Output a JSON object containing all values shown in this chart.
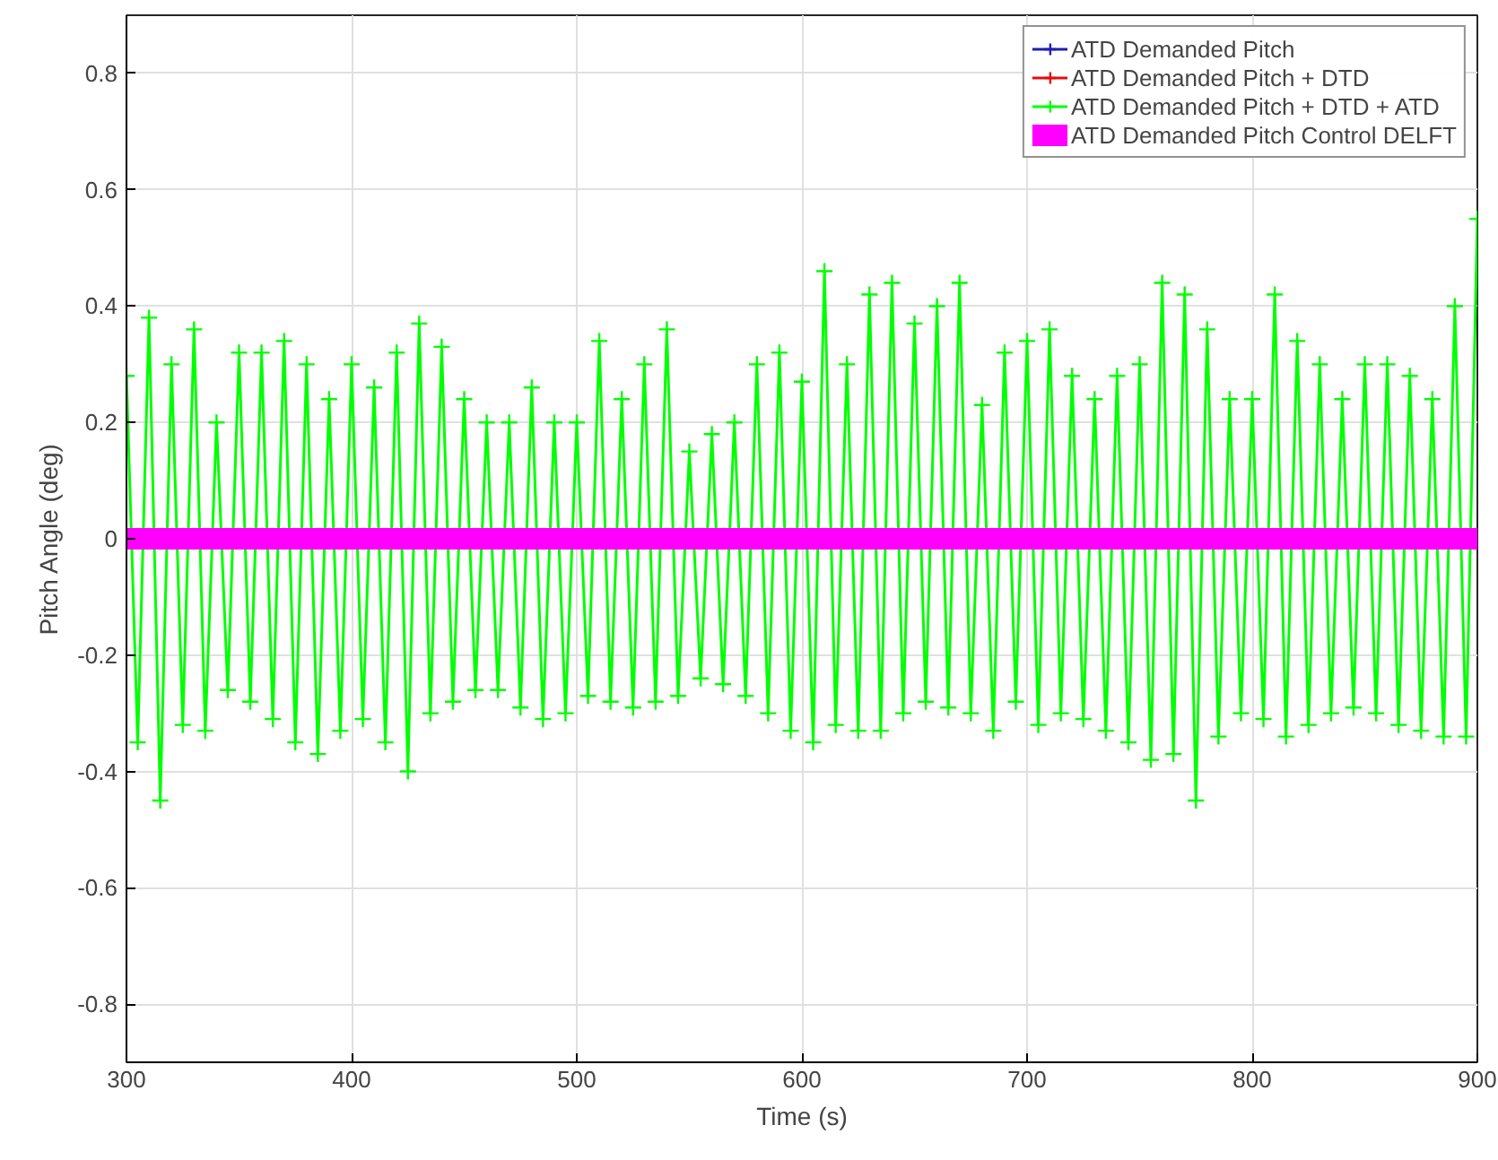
{
  "chart_data": {
    "type": "line",
    "xlabel": "Time (s)",
    "ylabel": "Pitch Angle (deg)",
    "xlim": [
      300,
      900
    ],
    "ylim": [
      -0.9,
      0.9
    ],
    "xticks": [
      300,
      400,
      500,
      600,
      700,
      800,
      900
    ],
    "yticks": [
      -0.8,
      -0.6,
      -0.4,
      -0.2,
      0,
      0.2,
      0.4,
      0.6,
      0.8
    ],
    "grid": true,
    "legend": "top right",
    "marker": "cross",
    "series": [
      {
        "name": "ATD Demanded Pitch",
        "color": "#1f1fb0"
      },
      {
        "name": "ATD Demanded Pitch + DTD",
        "color": "#e01010"
      },
      {
        "name": "ATD Demanded Pitch + DTD + ATD",
        "color": "#00ff00",
        "x": [
          300,
          305,
          310,
          315,
          320,
          325,
          330,
          335,
          340,
          345,
          350,
          355,
          360,
          365,
          370,
          375,
          380,
          385,
          390,
          395,
          400,
          405,
          410,
          415,
          420,
          425,
          430,
          435,
          440,
          445,
          450,
          455,
          460,
          465,
          470,
          475,
          480,
          485,
          490,
          495,
          500,
          505,
          510,
          515,
          520,
          525,
          530,
          535,
          540,
          545,
          550,
          555,
          560,
          565,
          570,
          575,
          580,
          585,
          590,
          595,
          600,
          605,
          610,
          615,
          620,
          625,
          630,
          635,
          640,
          645,
          650,
          655,
          660,
          665,
          670,
          675,
          680,
          685,
          690,
          695,
          700,
          705,
          710,
          715,
          720,
          725,
          730,
          735,
          740,
          745,
          750,
          755,
          760,
          765,
          770,
          775,
          780,
          785,
          790,
          795,
          800,
          805,
          810,
          815,
          820,
          825,
          830,
          835,
          840,
          845,
          850,
          855,
          860,
          865,
          870,
          875,
          880,
          885,
          890,
          895,
          900
        ],
        "values": [
          0.28,
          -0.35,
          0.38,
          -0.45,
          0.3,
          -0.32,
          0.36,
          -0.33,
          0.2,
          -0.26,
          0.32,
          -0.28,
          0.32,
          -0.31,
          0.34,
          -0.35,
          0.3,
          -0.37,
          0.24,
          -0.33,
          0.3,
          -0.31,
          0.26,
          -0.35,
          0.32,
          -0.4,
          0.37,
          -0.3,
          0.33,
          -0.28,
          0.24,
          -0.26,
          0.2,
          -0.26,
          0.2,
          -0.29,
          0.26,
          -0.31,
          0.2,
          -0.3,
          0.2,
          -0.27,
          0.34,
          -0.28,
          0.24,
          -0.29,
          0.3,
          -0.28,
          0.36,
          -0.27,
          0.15,
          -0.24,
          0.18,
          -0.25,
          0.2,
          -0.27,
          0.3,
          -0.3,
          0.32,
          -0.33,
          0.27,
          -0.35,
          0.46,
          -0.32,
          0.3,
          -0.33,
          0.42,
          -0.33,
          0.44,
          -0.3,
          0.37,
          -0.28,
          0.4,
          -0.29,
          0.44,
          -0.3,
          0.23,
          -0.33,
          0.32,
          -0.28,
          0.34,
          -0.32,
          0.36,
          -0.3,
          0.28,
          -0.31,
          0.24,
          -0.33,
          0.28,
          -0.35,
          0.3,
          -0.38,
          0.44,
          -0.37,
          0.42,
          -0.45,
          0.36,
          -0.34,
          0.24,
          -0.3,
          0.24,
          -0.31,
          0.42,
          -0.34,
          0.34,
          -0.32,
          0.3,
          -0.3,
          0.24,
          -0.29,
          0.3,
          -0.3,
          0.3,
          -0.32,
          0.28,
          -0.33,
          0.24,
          -0.34,
          0.4,
          -0.34,
          0.55
        ]
      },
      {
        "name": "ATD Demanded Pitch Control DELFT",
        "color": "#ff00ff",
        "x": [
          300,
          900
        ],
        "values": [
          0,
          0
        ]
      }
    ]
  }
}
